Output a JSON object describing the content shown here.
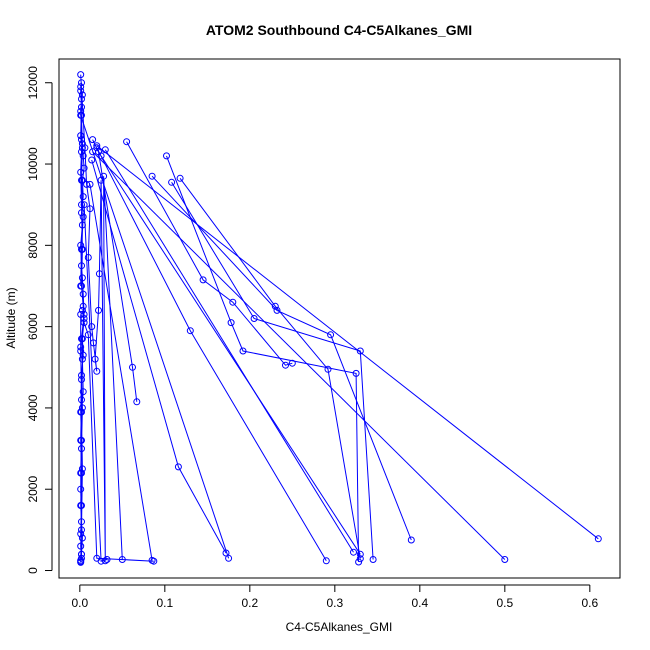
{
  "chart_data": {
    "type": "scatter",
    "title": "ATOM2 Southbound C4-C5Alkanes_GMI",
    "xlabel": "C4-C5Alkanes_GMI",
    "ylabel": "Altitude (m)",
    "xlim": [
      -0.0245,
      0.6355
    ],
    "ylim": [
      -184,
      12584
    ],
    "xticks": [
      0.0,
      0.1,
      0.2,
      0.3,
      0.4,
      0.5,
      0.6
    ],
    "xtick_labels": [
      "0.0",
      "0.1",
      "0.2",
      "0.3",
      "0.4",
      "0.5",
      "0.6"
    ],
    "yticks": [
      0,
      2000,
      4000,
      6000,
      8000,
      10000,
      12000
    ],
    "ytick_labels": [
      "0",
      "2000",
      "4000",
      "6000",
      "8000",
      "10000",
      "12000"
    ],
    "grid": false,
    "legend": "none",
    "line_color": "#0000ff",
    "marker": "open-circle",
    "series": [
      {
        "x": [
          0.001,
          0.002,
          0.003,
          0.002,
          0.004,
          0.003,
          0.002,
          0.005,
          0.004,
          0.003,
          0.002,
          0.001,
          0.003,
          0.002,
          0.004,
          0.003,
          0.005,
          0.004,
          0.003,
          0.002,
          0.001,
          0.002,
          0.003,
          0.001,
          0.002,
          0.001,
          0.002,
          0.001,
          0.002,
          0.001,
          0.002,
          0.003,
          0.002,
          0.004,
          0.005,
          0.003,
          0.004,
          0.002,
          0.003,
          0.002,
          0.001,
          0.002,
          0.001,
          0.002,
          0.001,
          0.002,
          0.003,
          0.001,
          0.002,
          0.001,
          0.002,
          0.001
        ],
        "y": [
          250,
          1000,
          2500,
          3900,
          4400,
          5200,
          5700,
          6300,
          6800,
          7200,
          7500,
          8000,
          8500,
          8800,
          9200,
          9600,
          9900,
          10200,
          10500,
          10600,
          11300,
          11600,
          11700,
          11900,
          12000,
          11800,
          11400,
          10700,
          10300,
          9800,
          9000,
          7900,
          7000,
          6500,
          6200,
          5700,
          5300,
          4800,
          4000,
          3000,
          2000,
          1200,
          600,
          300,
          220,
          400,
          800,
          1600,
          2400,
          3200,
          4200,
          5500
        ]
      },
      {
        "x": [
          0.001,
          0.006,
          0.008,
          0.012,
          0.01,
          0.014,
          0.016,
          0.02,
          0.018,
          0.022,
          0.023,
          0.025,
          0.03,
          0.028,
          0.05,
          0.087,
          0.02,
          0.01,
          0.005,
          0.003
        ],
        "y": [
          12200,
          10400,
          9500,
          8900,
          7700,
          6000,
          5600,
          4900,
          5200,
          6400,
          7300,
          9600,
          240,
          9700,
          270,
          230,
          300,
          5800,
          6100,
          6400
        ]
      },
      {
        "x": [
          0.001,
          0.001,
          0.002,
          0.001,
          0.002,
          0.001,
          0.002,
          0.001,
          0.002,
          0.001
        ],
        "y": [
          6300,
          5400,
          4700,
          3900,
          3200,
          2400,
          1600,
          900,
          400,
          200
        ]
      },
      {
        "x": [
          0.002,
          0.003,
          0.002,
          0.004,
          0.002,
          0.001
        ],
        "y": [
          11200,
          10400,
          9600,
          8700,
          7900,
          7000
        ]
      },
      {
        "x": [
          0.001,
          0.175
        ],
        "y": [
          11200,
          300
        ]
      },
      {
        "x": [
          0.015,
          0.022,
          0.062,
          0.067
        ],
        "y": [
          10600,
          10300,
          5000,
          4150
        ]
      },
      {
        "x": [
          0.014,
          0.116,
          0.172
        ],
        "y": [
          10100,
          2550,
          430
        ]
      },
      {
        "x": [
          0.02,
          0.13,
          0.29
        ],
        "y": [
          10400,
          5900,
          240
        ]
      },
      {
        "x": [
          0.055,
          0.145,
          0.18,
          0.242,
          0.25
        ],
        "y": [
          10550,
          7150,
          6600,
          5050,
          5100
        ]
      },
      {
        "x": [
          0.102,
          0.178,
          0.192,
          0.325,
          0.328
        ],
        "y": [
          10200,
          6100,
          5400,
          4850,
          210
        ]
      },
      {
        "x": [
          0.108,
          0.205,
          0.33,
          0.345
        ],
        "y": [
          9550,
          6200,
          5400,
          270
        ]
      },
      {
        "x": [
          0.085,
          0.232,
          0.295,
          0.39
        ],
        "y": [
          9700,
          6400,
          5800,
          750
        ]
      },
      {
        "x": [
          0.118,
          0.23,
          0.292,
          0.33
        ],
        "y": [
          9650,
          6500,
          4950,
          290
        ]
      },
      {
        "x": [
          0.015,
          0.5
        ],
        "y": [
          10300,
          270
        ]
      },
      {
        "x": [
          0.02,
          0.61
        ],
        "y": [
          10450,
          780
        ]
      },
      {
        "x": [
          0.025,
          0.33
        ],
        "y": [
          10200,
          400
        ]
      },
      {
        "x": [
          0.03,
          0.322
        ],
        "y": [
          10350,
          450
        ]
      },
      {
        "x": [
          0.012,
          0.085
        ],
        "y": [
          9500,
          250
        ]
      },
      {
        "x": [
          0.005,
          0.025,
          0.032
        ],
        "y": [
          9000,
          230,
          270
        ]
      }
    ]
  }
}
